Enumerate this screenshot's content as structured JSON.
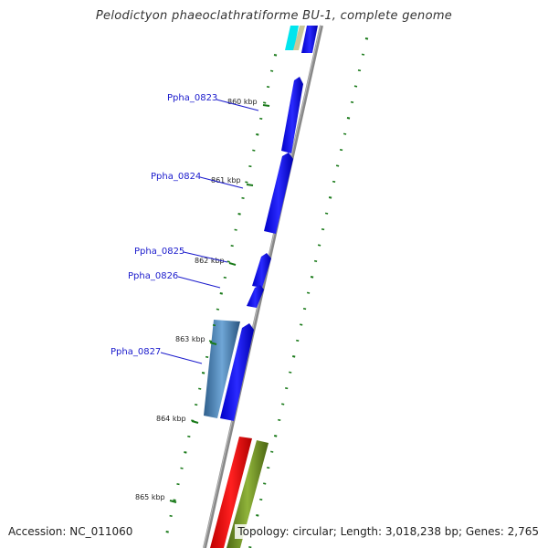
{
  "title": "Pelodictyon phaeoclathratiforme BU-1, complete genome",
  "footer": {
    "accession": "Accession: NC_011060",
    "topology": "Topology: circular; Length: 3,018,238 bp; Genes: 2,765"
  },
  "kbp_labels": [
    "860 kbp",
    "861 kbp",
    "862 kbp",
    "863 kbp",
    "864 kbp",
    "865 kbp"
  ],
  "gene_labels": [
    "Ppha_0823",
    "Ppha_0824",
    "Ppha_0825",
    "Ppha_0826",
    "Ppha_0827"
  ],
  "colors": {
    "forward_cds": "#0000ee",
    "reverse_cds": "#4a86b8",
    "backbone": "#888888",
    "ticks": "#1a7a1a",
    "gene_label": "#1a1acc",
    "red_feature": "#ee0000",
    "olive_feature": "#6b8e23",
    "cyan_feature": "#00e5ee",
    "tan_feature": "#c8c89a"
  }
}
